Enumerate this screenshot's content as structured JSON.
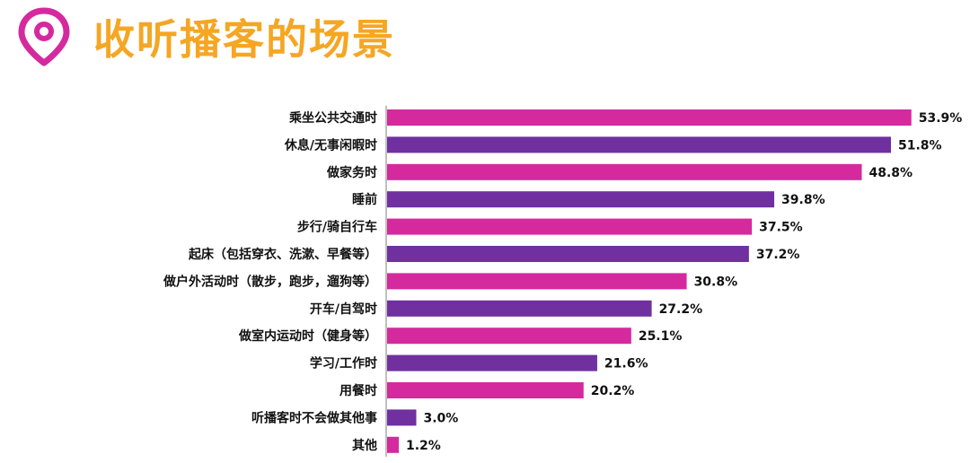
{
  "header": {
    "title": "收听播客的场景",
    "icon": "location-pin-icon",
    "icon_color": "#d42a9e",
    "title_color": "#f5a623"
  },
  "colors": {
    "pink": "#d42a9e",
    "purple": "#7030a0",
    "axis": "#7f7f7f"
  },
  "chart_data": {
    "type": "bar",
    "orientation": "horizontal",
    "categories": [
      "乘坐公共交通时",
      "休息/无事闲暇时",
      "做家务时",
      "睡前",
      "步行/骑自行车",
      "起床（包括穿衣、洗漱、早餐等）",
      "做户外活动时（散步，跑步，遛狗等）",
      "开车/自驾时",
      "做室内运动时（健身等）",
      "学习/工作时",
      "用餐时",
      "听播客时不会做其他事",
      "其他"
    ],
    "values": [
      53.9,
      51.8,
      48.8,
      39.8,
      37.5,
      37.2,
      30.8,
      27.2,
      25.1,
      21.6,
      20.2,
      3.0,
      1.2
    ],
    "value_labels": [
      "53.9%",
      "51.8%",
      "48.8%",
      "39.8%",
      "37.5%",
      "37.2%",
      "30.8%",
      "27.2%",
      "25.1%",
      "21.6%",
      "20.2%",
      "3.0%",
      "1.2%"
    ],
    "bar_colors": [
      "pink",
      "purple",
      "pink",
      "purple",
      "pink",
      "purple",
      "pink",
      "purple",
      "pink",
      "purple",
      "pink",
      "purple",
      "pink"
    ],
    "xlim": [
      0,
      60
    ],
    "unit": "%",
    "grid": false
  }
}
